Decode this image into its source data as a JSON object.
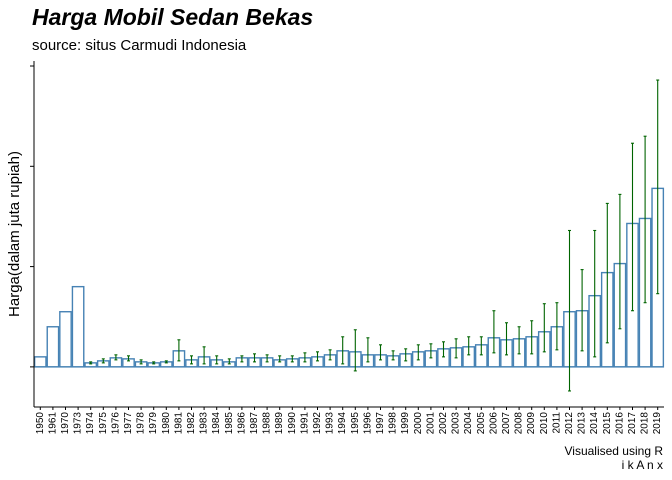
{
  "chart_data": {
    "type": "bar",
    "title": "Harga Mobil Sedan Bekas",
    "subtitle": "source: situs Carmudi Indonesia",
    "xlabel": "",
    "ylabel": "Harga(dalam juta rupiah)",
    "caption_lines": [
      "Visualised using R",
      "i k A n x"
    ],
    "y_tick_labels_visible": false,
    "ylim": [
      -40,
      305
    ],
    "grid": false,
    "legend": "none",
    "colors": {
      "bar_outline": "#4682b4",
      "error_bar": "#006400",
      "baseline": "#4682b4",
      "axis": "#000000"
    },
    "categories": [
      "1950",
      "1961",
      "1970",
      "1973",
      "1974",
      "1975",
      "1976",
      "1977",
      "1978",
      "1979",
      "1980",
      "1981",
      "1982",
      "1983",
      "1984",
      "1985",
      "1986",
      "1987",
      "1988",
      "1989",
      "1990",
      "1991",
      "1992",
      "1993",
      "1994",
      "1995",
      "1996",
      "1997",
      "1998",
      "1999",
      "2000",
      "2001",
      "2002",
      "2003",
      "2004",
      "2005",
      "2006",
      "2007",
      "2008",
      "2009",
      "2010",
      "2011",
      "2012",
      "2013",
      "2014",
      "2015",
      "2016",
      "2017",
      "2018",
      "2019"
    ],
    "values": [
      10,
      40,
      55,
      80,
      4,
      6,
      9,
      8,
      5,
      4,
      5,
      16,
      7,
      10,
      7,
      5,
      9,
      9,
      9,
      7,
      8,
      9,
      10,
      12,
      16,
      15,
      12,
      12,
      11,
      13,
      15,
      16,
      18,
      19,
      20,
      22,
      29,
      27,
      28,
      30,
      35,
      40,
      55,
      56,
      71,
      94,
      103,
      143,
      148,
      178
    ],
    "error_low": [
      10,
      40,
      55,
      80,
      3,
      4,
      7,
      6,
      3,
      3,
      4,
      6,
      3,
      3,
      3,
      3,
      5,
      5,
      5,
      5,
      5,
      5,
      6,
      7,
      3,
      -4,
      5,
      7,
      7,
      6,
      7,
      9,
      10,
      9,
      12,
      12,
      14,
      12,
      13,
      13,
      15,
      17,
      -24,
      16,
      10,
      24,
      38,
      56,
      64,
      73
    ],
    "error_high": [
      10,
      40,
      55,
      80,
      5,
      8,
      12,
      11,
      7,
      5,
      6,
      27,
      11,
      20,
      11,
      8,
      11,
      13,
      12,
      11,
      11,
      14,
      15,
      17,
      30,
      37,
      29,
      22,
      16,
      18,
      22,
      23,
      25,
      28,
      30,
      30,
      56,
      44,
      40,
      46,
      63,
      64,
      136,
      97,
      136,
      163,
      172,
      223,
      230,
      286
    ]
  }
}
